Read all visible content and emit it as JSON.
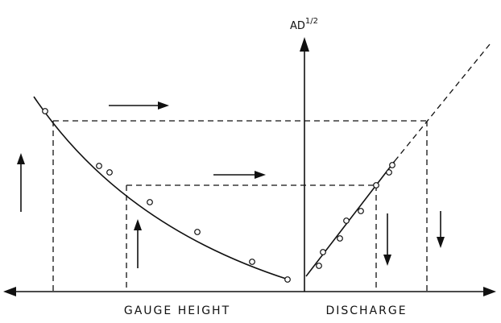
{
  "axis_label": {
    "text": "AD",
    "superscript": "1/2"
  },
  "labels": {
    "left": "GAUGE HEIGHT",
    "right": "DISCHARGE"
  }
}
